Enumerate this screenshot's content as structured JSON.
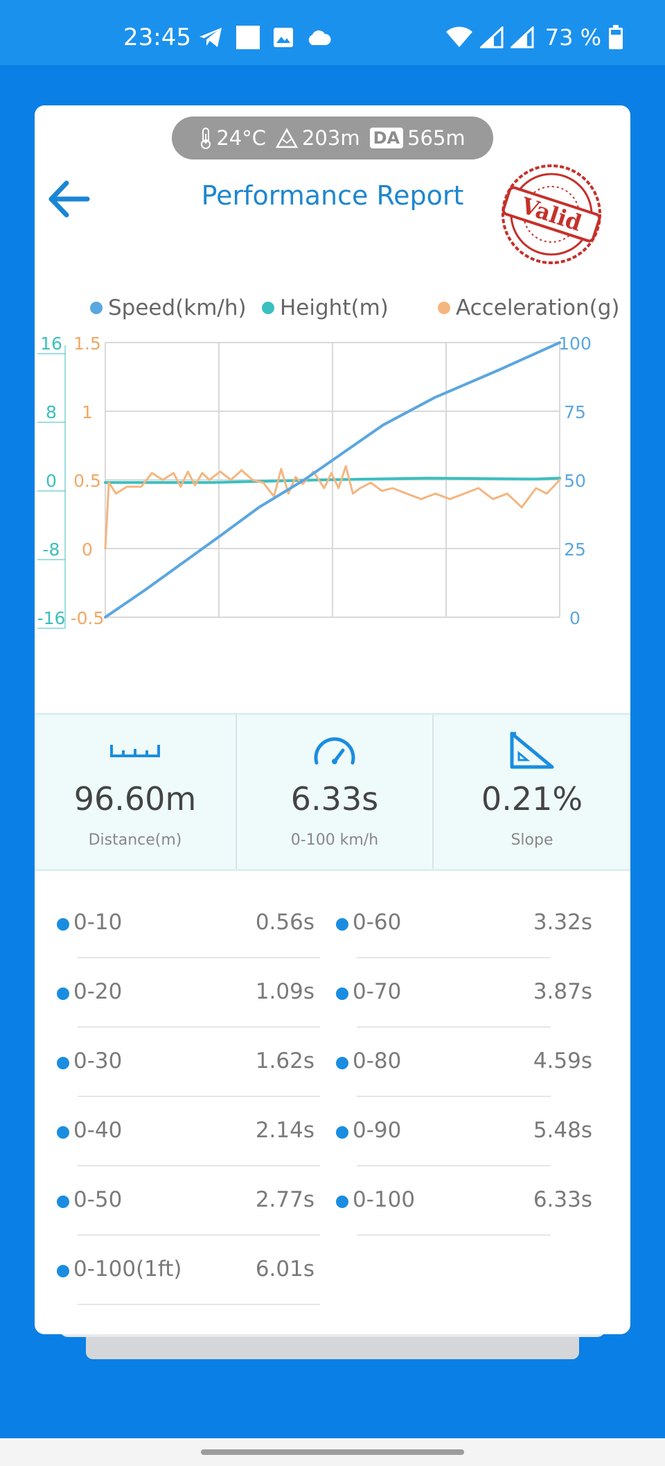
{
  "status_bar": {
    "time": "23:45",
    "battery": "73 %"
  },
  "conditions": {
    "temperature": "24°C",
    "altitude": "203m",
    "da_label": "DA",
    "density_altitude": "565m"
  },
  "header": {
    "title": "Performance Report",
    "stamp_text": "Valid"
  },
  "legend": {
    "speed": "Speed(km/h)",
    "height": "Height(m)",
    "acceleration": "Acceleration(g)"
  },
  "colors": {
    "speed": "#5ba6e0",
    "height": "#3bbfbf",
    "acceleration": "#f5b57f",
    "accent": "#1a8de0"
  },
  "chart_data": {
    "type": "line",
    "height_axis": {
      "ticks": [
        "16",
        "8",
        "0",
        "-8",
        "-16"
      ],
      "range": [
        -16,
        16
      ]
    },
    "accel_axis": {
      "ticks": [
        "1.5",
        "1",
        "0.5",
        "0",
        "-0.5"
      ],
      "range": [
        -0.5,
        1.5
      ]
    },
    "speed_axis": {
      "ticks": [
        "100",
        "75",
        "50",
        "25",
        "0"
      ],
      "range": [
        0,
        100
      ]
    },
    "x_range": [
      0,
      6.33
    ],
    "grid": true,
    "series": [
      {
        "name": "Speed(km/h)",
        "axis": "speed",
        "x": [
          0,
          0.56,
          1.09,
          1.62,
          2.14,
          2.77,
          3.32,
          3.87,
          4.59,
          5.48,
          6.33
        ],
        "y": [
          0,
          10,
          20,
          30,
          40,
          50,
          60,
          70,
          80,
          90,
          100
        ]
      },
      {
        "name": "Height(m)",
        "axis": "height",
        "x": [
          0,
          1.5,
          3.0,
          4.5,
          6.0,
          6.33
        ],
        "y": [
          -0.3,
          -0.3,
          0,
          0.2,
          0.1,
          0.2
        ]
      },
      {
        "name": "Acceleration(g)",
        "axis": "accel",
        "x": [
          0,
          0.05,
          0.15,
          0.3,
          0.5,
          0.65,
          0.8,
          0.95,
          1.05,
          1.15,
          1.25,
          1.35,
          1.45,
          1.6,
          1.75,
          1.9,
          2.05,
          2.2,
          2.35,
          2.45,
          2.55,
          2.65,
          2.75,
          2.9,
          3.05,
          3.15,
          3.25,
          3.35,
          3.45,
          3.55,
          3.7,
          3.85,
          4.0,
          4.2,
          4.4,
          4.6,
          4.8,
          5.0,
          5.2,
          5.4,
          5.6,
          5.8,
          6.0,
          6.15,
          6.33
        ],
        "y": [
          0,
          0.48,
          0.4,
          0.45,
          0.45,
          0.55,
          0.5,
          0.55,
          0.45,
          0.56,
          0.46,
          0.55,
          0.5,
          0.56,
          0.5,
          0.57,
          0.5,
          0.48,
          0.38,
          0.58,
          0.4,
          0.52,
          0.47,
          0.56,
          0.44,
          0.55,
          0.44,
          0.6,
          0.4,
          0.44,
          0.48,
          0.42,
          0.44,
          0.4,
          0.36,
          0.4,
          0.36,
          0.4,
          0.44,
          0.36,
          0.4,
          0.3,
          0.44,
          0.4,
          0.5
        ]
      }
    ]
  },
  "stats": [
    {
      "value": "96.60m",
      "label": "Distance(m)",
      "icon": "ruler-icon"
    },
    {
      "value": "6.33s",
      "label": "0-100 km/h",
      "icon": "speedometer-icon"
    },
    {
      "value": "0.21%",
      "label": "Slope",
      "icon": "slope-icon"
    }
  ],
  "splits_left": [
    {
      "range": "0-10",
      "time": "0.56s"
    },
    {
      "range": "0-20",
      "time": "1.09s"
    },
    {
      "range": "0-30",
      "time": "1.62s"
    },
    {
      "range": "0-40",
      "time": "2.14s"
    },
    {
      "range": "0-50",
      "time": "2.77s"
    },
    {
      "range": "0-100(1ft)",
      "time": "6.01s"
    }
  ],
  "splits_right": [
    {
      "range": "0-60",
      "time": "3.32s"
    },
    {
      "range": "0-70",
      "time": "3.87s"
    },
    {
      "range": "0-80",
      "time": "4.59s"
    },
    {
      "range": "0-90",
      "time": "5.48s"
    },
    {
      "range": "0-100",
      "time": "6.33s"
    }
  ]
}
